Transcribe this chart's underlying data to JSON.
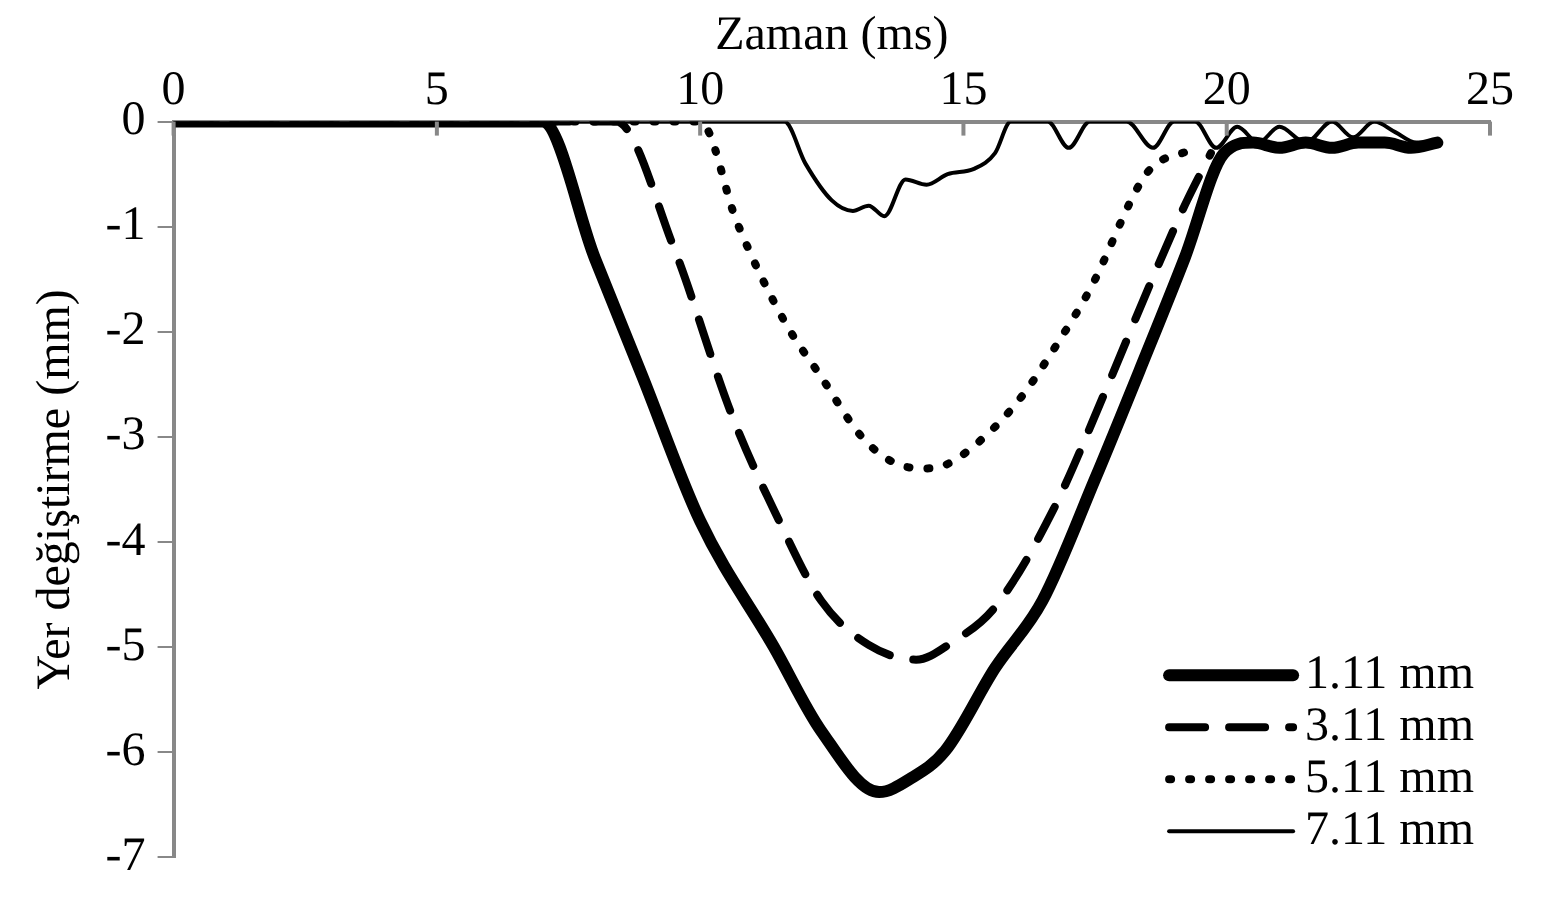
{
  "chart_data": {
    "type": "line",
    "xlabel": "Zaman (ms)",
    "ylabel": "Yer değiştirme (mm)",
    "xlim": [
      0,
      25
    ],
    "xticks": [
      0,
      5,
      10,
      15,
      20,
      25
    ],
    "ylim": [
      -7,
      0
    ],
    "yticks": [
      0,
      -1,
      -2,
      -3,
      -4,
      -5,
      -6,
      -7
    ],
    "grid": false,
    "legend": "bottom right",
    "marker": "none",
    "series": [
      {
        "name": "1.11 mm",
        "color": "#000000",
        "line_style": "solid",
        "x": [
          0,
          7.0,
          8.0,
          8.9,
          10.0,
          11.4,
          12.3,
          13.4,
          14.0,
          14.65,
          15.6,
          16.5,
          17.5,
          18.4,
          19.2,
          19.95,
          20.5,
          21,
          21.5,
          22,
          22.5,
          23,
          23.5,
          24
        ],
        "values": [
          0,
          0,
          -1.3,
          -2.42,
          -3.8,
          -5.0,
          -5.8,
          -6.38,
          -6.25,
          -5.99,
          -5.2,
          -4.56,
          -3.4,
          -2.3,
          -1.3,
          -0.3,
          -0.2,
          -0.25,
          -0.2,
          -0.25,
          -0.2,
          -0.2,
          -0.25,
          -0.2
        ]
      },
      {
        "name": "3.11 mm",
        "color": "#000000",
        "line_style": "dashed",
        "x": [
          0,
          8.4,
          9.5,
          10.6,
          11.5,
          12.3,
          13.2,
          14.1,
          14.8,
          15.6,
          16.7,
          17.7,
          18.5,
          19.2,
          19.7
        ],
        "values": [
          0,
          0,
          -1.2,
          -2.79,
          -3.8,
          -4.56,
          -4.98,
          -5.12,
          -4.95,
          -4.62,
          -3.7,
          -2.56,
          -1.6,
          -0.8,
          -0.3
        ]
      },
      {
        "name": "5.11 mm",
        "color": "#000000",
        "line_style": "dotted",
        "x": [
          0,
          10.0,
          10.7,
          11.6,
          12.3,
          13.07,
          13.7,
          14.3,
          14.65,
          15.4,
          16.1,
          16.8,
          17.4,
          18.5,
          19.3
        ],
        "values": [
          0,
          0,
          -0.96,
          -1.9,
          -2.43,
          -3.0,
          -3.25,
          -3.3,
          -3.27,
          -3.0,
          -2.62,
          -2.1,
          -1.6,
          -0.48,
          -0.27
        ]
      },
      {
        "name": "7.11 mm",
        "color": "#000000",
        "line_style": "solid",
        "x": [
          0,
          11.6,
          12.0,
          12.5,
          12.9,
          13.2,
          13.5,
          13.9,
          14.3,
          14.7,
          15.2,
          15.6,
          15.9,
          16.6,
          17.0,
          17.4,
          18.1,
          18.6,
          19.0,
          19.4,
          19.8,
          20.2,
          20.6,
          21.0,
          21.5,
          22.0,
          22.4,
          22.8,
          23.2,
          23.6,
          24.0
        ],
        "values": [
          0,
          0,
          -0.4,
          -0.75,
          -0.85,
          -0.8,
          -0.9,
          -0.55,
          -0.6,
          -0.5,
          -0.45,
          -0.3,
          0,
          0,
          -0.25,
          0,
          0,
          -0.25,
          0,
          0,
          -0.25,
          -0.05,
          -0.2,
          -0.05,
          -0.2,
          0,
          -0.15,
          0,
          -0.1,
          -0.2,
          -0.2
        ]
      }
    ]
  }
}
